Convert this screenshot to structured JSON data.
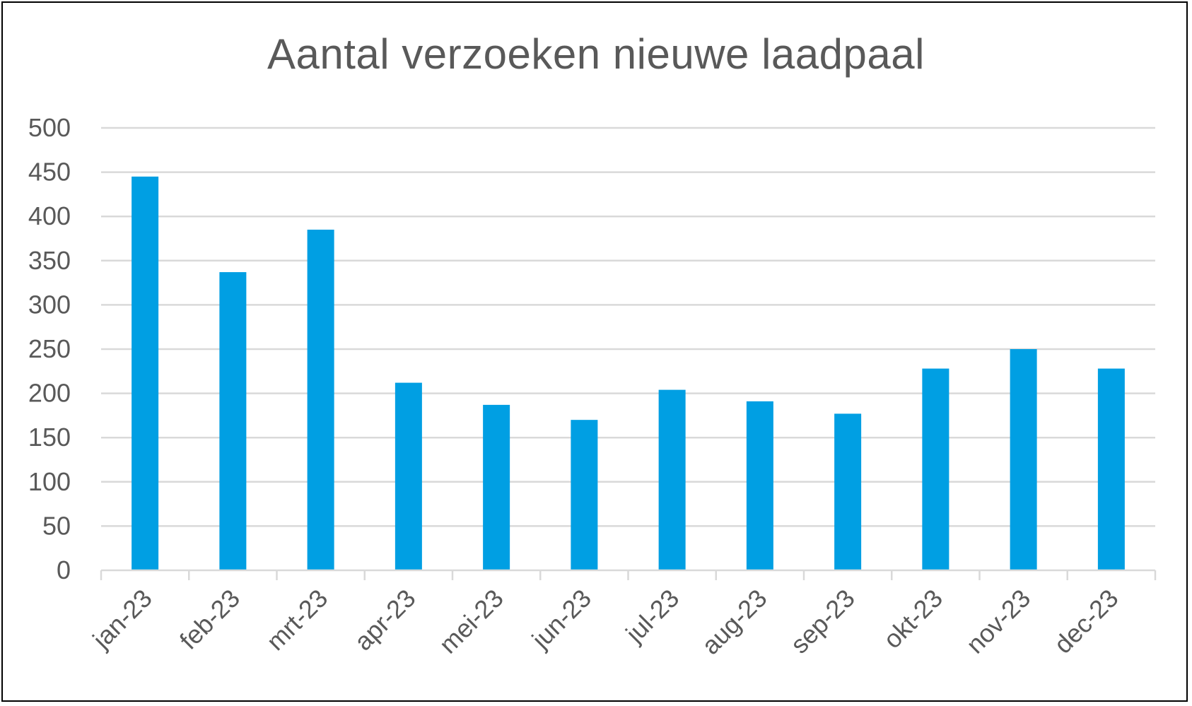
{
  "chart_data": {
    "type": "bar",
    "title": "Aantal verzoeken nieuwe laadpaal",
    "categories": [
      "jan-23",
      "feb-23",
      "mrt-23",
      "apr-23",
      "mei-23",
      "jun-23",
      "jul-23",
      "aug-23",
      "sep-23",
      "okt-23",
      "nov-23",
      "dec-23"
    ],
    "series": [
      {
        "values": [
          445,
          337,
          385,
          212,
          187,
          170,
          204,
          191,
          177,
          228,
          250,
          228
        ]
      }
    ],
    "ylim": [
      0,
      500
    ],
    "yticks": [
      0,
      50,
      100,
      150,
      200,
      250,
      300,
      350,
      400,
      450,
      500
    ],
    "grid": true,
    "legend": "none",
    "colors": {
      "bar": "#009FE3",
      "grid": "#D9D9D9",
      "axis": "#D9D9D9",
      "text": "#595959"
    }
  }
}
